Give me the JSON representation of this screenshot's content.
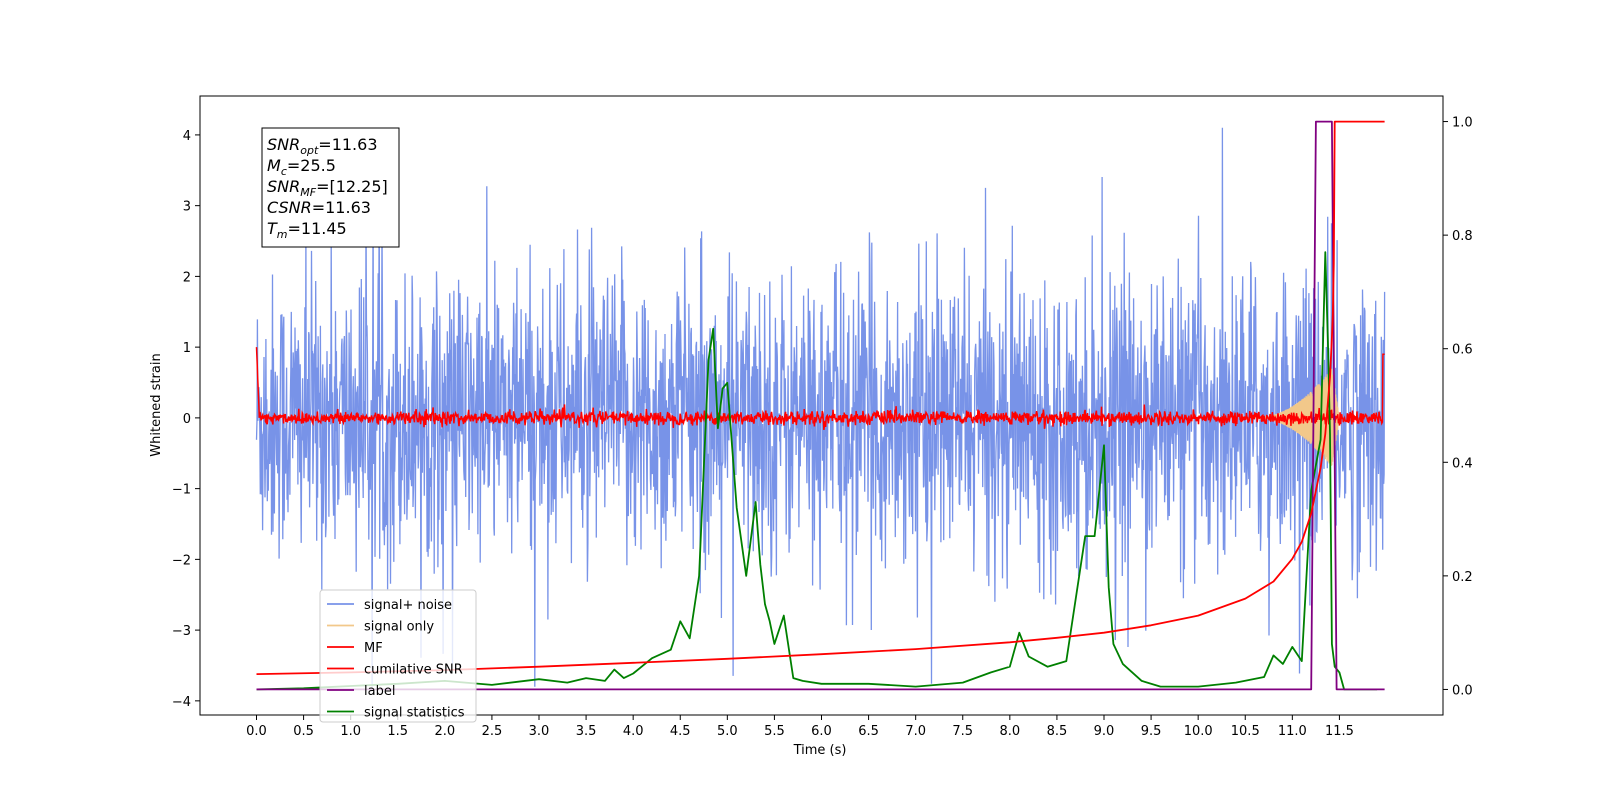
{
  "chart_data": {
    "type": "line",
    "xlabel": "Time (s)",
    "ylabel": "Whitened strain",
    "xlim": [
      -0.6,
      12.6
    ],
    "ylim": [
      -4.2,
      4.55
    ],
    "y2lim": [
      -0.045,
      1.045
    ],
    "x_ticks": [
      0.0,
      0.5,
      1.0,
      1.5,
      2.0,
      2.5,
      3.0,
      3.5,
      4.0,
      4.5,
      5.0,
      5.5,
      6.0,
      6.5,
      7.0,
      7.5,
      8.0,
      8.5,
      9.0,
      9.5,
      10.0,
      10.5,
      11.0,
      11.5
    ],
    "x_tick_labels": [
      "0.0",
      "0.5",
      "1.0",
      "1.5",
      "2.0",
      "2.5",
      "3.0",
      "3.5",
      "4.0",
      "4.5",
      "5.0",
      "5.5",
      "6.0",
      "6.5",
      "7.0",
      "7.5",
      "8.0",
      "8.5",
      "9.0",
      "9.5",
      "10.0",
      "10.5",
      "11.0",
      "11.5"
    ],
    "y_ticks": [
      -4,
      -3,
      -2,
      -1,
      0,
      1,
      2,
      3,
      4
    ],
    "y_tick_labels": [
      "−4",
      "−3",
      "−2",
      "−1",
      "0",
      "1",
      "2",
      "3",
      "4"
    ],
    "y2_ticks": [
      0.0,
      0.2,
      0.4,
      0.6,
      0.8,
      1.0
    ],
    "y2_tick_labels": [
      "0.0",
      "0.2",
      "0.4",
      "0.6",
      "0.8",
      "1.0"
    ],
    "grid": false,
    "legend_position": "lower-left",
    "colors": {
      "signal_noise": "#7893e8",
      "signal_only": "#f2c88a",
      "mf": "#ff0000",
      "cumulative_snr": "#ff0000",
      "label": "#800080",
      "signal_statistics": "#008000"
    },
    "series": [
      {
        "name": "signal+ noise",
        "axis": "left",
        "t_range": [
          0.0,
          11.98
        ],
        "envelope": "noise with std ≈ 1, extremes ≈ +4.1 / −3.8"
      },
      {
        "name": "signal only",
        "axis": "left",
        "t_range": [
          10.6,
          11.5
        ],
        "peak_amplitude": 0.7,
        "peak_time": 11.42
      },
      {
        "name": "MF",
        "axis": "left",
        "t_range": [
          0.0,
          11.98
        ],
        "start_value": 1.0,
        "typical_amplitude": 0.1,
        "end_value": 0.9
      },
      {
        "name": "cumilative SNR",
        "axis": "right",
        "x": [
          0.0,
          1.0,
          2.0,
          3.0,
          4.0,
          5.0,
          6.0,
          7.0,
          8.0,
          8.5,
          9.0,
          9.5,
          10.0,
          10.5,
          10.8,
          11.0,
          11.1,
          11.2,
          11.3,
          11.35,
          11.4,
          11.42,
          11.43,
          11.44,
          11.45,
          11.98
        ],
        "y": [
          0.027,
          0.03,
          0.034,
          0.04,
          0.047,
          0.054,
          0.062,
          0.071,
          0.083,
          0.091,
          0.1,
          0.113,
          0.13,
          0.16,
          0.19,
          0.23,
          0.26,
          0.31,
          0.39,
          0.45,
          0.55,
          0.62,
          0.66,
          0.75,
          1.0,
          1.0
        ]
      },
      {
        "name": "label",
        "axis": "right",
        "x": [
          0.0,
          11.2,
          11.25,
          11.42,
          11.47,
          11.98
        ],
        "y": [
          0.0,
          0.0,
          1.0,
          1.0,
          0.0,
          0.0
        ]
      },
      {
        "name": "signal statistics",
        "axis": "right",
        "x": [
          0.0,
          0.5,
          1.0,
          1.5,
          2.0,
          2.5,
          3.0,
          3.3,
          3.5,
          3.7,
          3.8,
          3.9,
          4.0,
          4.2,
          4.4,
          4.5,
          4.6,
          4.7,
          4.8,
          4.85,
          4.9,
          4.95,
          5.0,
          5.1,
          5.2,
          5.3,
          5.35,
          5.4,
          5.45,
          5.5,
          5.6,
          5.7,
          5.8,
          6.0,
          6.5,
          7.0,
          7.5,
          7.8,
          8.0,
          8.1,
          8.2,
          8.4,
          8.6,
          8.8,
          8.9,
          9.0,
          9.05,
          9.1,
          9.2,
          9.4,
          9.6,
          10.0,
          10.4,
          10.7,
          10.8,
          10.9,
          11.0,
          11.1,
          11.2,
          11.3,
          11.35,
          11.38,
          11.4,
          11.42,
          11.45,
          11.5,
          11.55,
          11.6,
          11.9
        ],
        "y": [
          0.0,
          0.002,
          0.006,
          0.01,
          0.015,
          0.008,
          0.018,
          0.012,
          0.02,
          0.015,
          0.035,
          0.02,
          0.028,
          0.055,
          0.07,
          0.12,
          0.09,
          0.2,
          0.58,
          0.635,
          0.46,
          0.53,
          0.54,
          0.32,
          0.2,
          0.33,
          0.22,
          0.15,
          0.12,
          0.08,
          0.13,
          0.02,
          0.015,
          0.01,
          0.01,
          0.005,
          0.012,
          0.03,
          0.04,
          0.1,
          0.058,
          0.04,
          0.05,
          0.27,
          0.27,
          0.43,
          0.18,
          0.08,
          0.045,
          0.015,
          0.005,
          0.005,
          0.012,
          0.022,
          0.06,
          0.045,
          0.075,
          0.05,
          0.35,
          0.44,
          0.77,
          0.6,
          0.45,
          0.08,
          0.04,
          0.03,
          0.0,
          0.0,
          0.0
        ]
      }
    ],
    "annotation": [
      {
        "base": "SNR",
        "sub": "opt",
        "value": "=11.63"
      },
      {
        "base": "M",
        "sub": "c",
        "value": "=25.5"
      },
      {
        "base": "SNR",
        "sub": "MF",
        "value": "=[12.25]"
      },
      {
        "base": "CSNR",
        "sub": "",
        "value": "=11.63"
      },
      {
        "base": "T",
        "sub": "m",
        "value": "=11.45"
      }
    ]
  }
}
